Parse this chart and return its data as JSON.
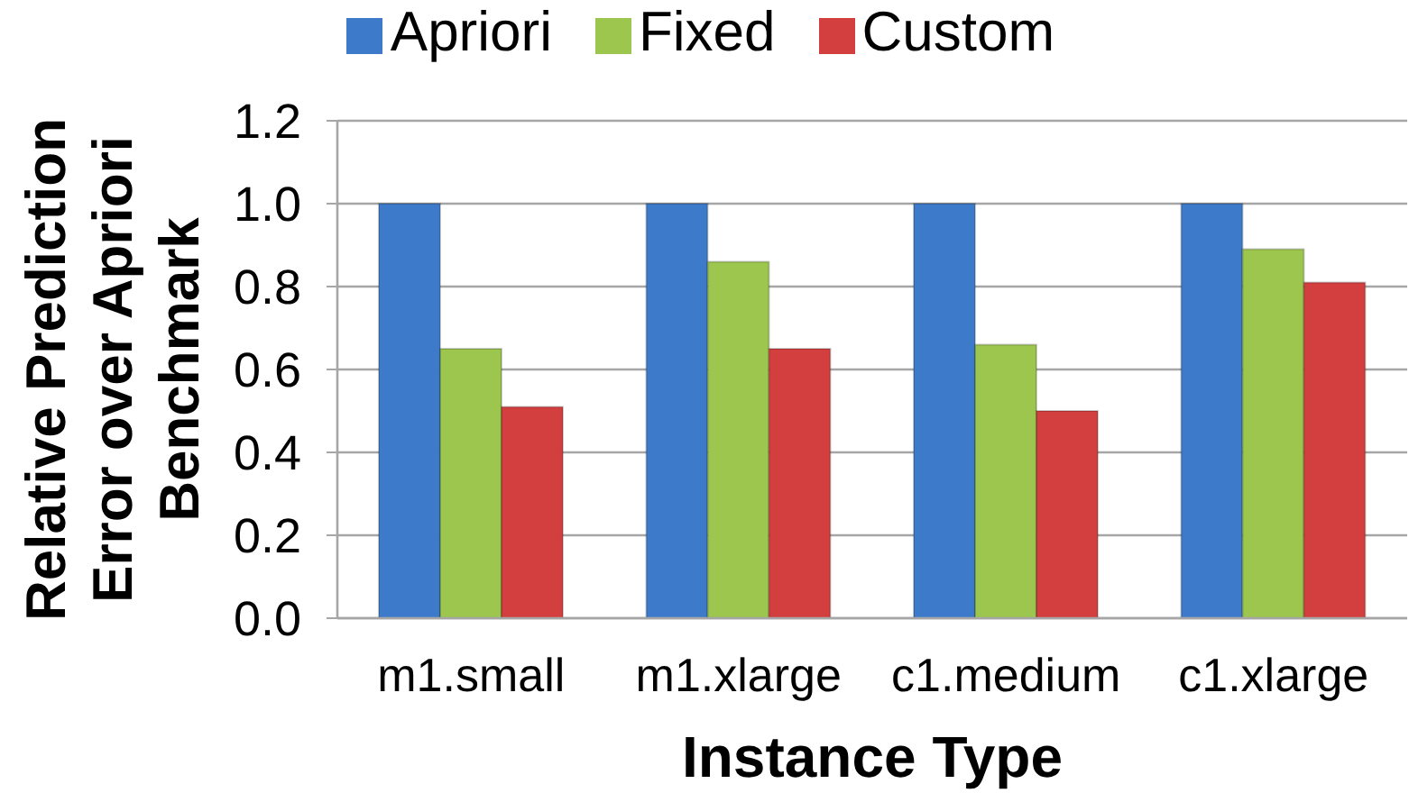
{
  "chart_data": {
    "type": "bar",
    "xlabel": "Instance Type",
    "ylabel": "Relative Prediction Error over Apriori Benchmark",
    "categories": [
      "m1.small",
      "m1.xlarge",
      "c1.medium",
      "c1.xlarge"
    ],
    "series": [
      {
        "name": "Apriori",
        "color": "#3d7bca",
        "values": [
          1.0,
          1.0,
          1.0,
          1.0
        ]
      },
      {
        "name": "Fixed",
        "color": "#9dc64e",
        "values": [
          0.65,
          0.86,
          0.66,
          0.89
        ]
      },
      {
        "name": "Custom",
        "color": "#d23f3e",
        "values": [
          0.51,
          0.65,
          0.5,
          0.81
        ]
      }
    ],
    "ylim": [
      0,
      1.2
    ],
    "yticks": [
      {
        "value": 0,
        "label": "0.0"
      },
      {
        "value": 0.2,
        "label": "0.2"
      },
      {
        "value": 0.4,
        "label": "0.4"
      },
      {
        "value": 0.6,
        "label": "0.6"
      },
      {
        "value": 0.8,
        "label": "0.8"
      },
      {
        "value": 1.0,
        "label": "1.0"
      },
      {
        "value": 1.2,
        "label": "1.2"
      }
    ],
    "grid": "y",
    "legend": "top"
  }
}
